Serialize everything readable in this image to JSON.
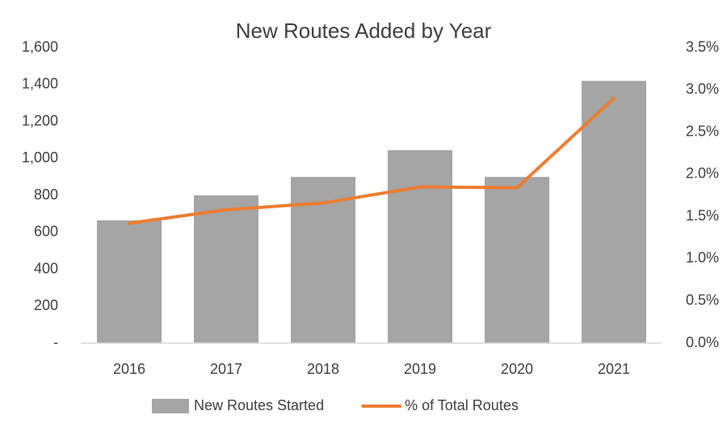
{
  "chart_data": {
    "type": "combo",
    "title": "New Routes Added by Year",
    "categories": [
      "2016",
      "2017",
      "2018",
      "2019",
      "2020",
      "2021"
    ],
    "series": [
      {
        "name": "New Routes Started",
        "type": "bar",
        "color": "#a5a5a5",
        "values": [
          665,
          800,
          900,
          1045,
          900,
          1420
        ]
      },
      {
        "name": "% of Total Routes",
        "type": "line",
        "axis": "y2",
        "color": "#ed7d31",
        "values": [
          1.42,
          1.58,
          1.66,
          1.85,
          1.84,
          2.9
        ]
      }
    ],
    "ylim": [
      0,
      1600
    ],
    "yticks": [
      {
        "value": 0,
        "label": "-"
      },
      200,
      400,
      600,
      800,
      {
        "value": 1000,
        "label": "1,000"
      },
      {
        "value": 1200,
        "label": "1,200"
      },
      {
        "value": 1400,
        "label": "1,400"
      },
      {
        "value": 1600,
        "label": "1,600"
      }
    ],
    "y2lim": [
      0,
      3.5
    ],
    "y2ticks": [
      {
        "value": 0,
        "label": "0.0%"
      },
      {
        "value": 0.5,
        "label": "0.5%"
      },
      {
        "value": 1,
        "label": "1.0%"
      },
      {
        "value": 1.5,
        "label": "1.5%"
      },
      {
        "value": 2,
        "label": "2.0%"
      },
      {
        "value": 2.5,
        "label": "2.5%"
      },
      {
        "value": 3,
        "label": "3.0%"
      },
      {
        "value": 3.5,
        "label": "3.5%"
      }
    ],
    "legend": "bottom"
  }
}
